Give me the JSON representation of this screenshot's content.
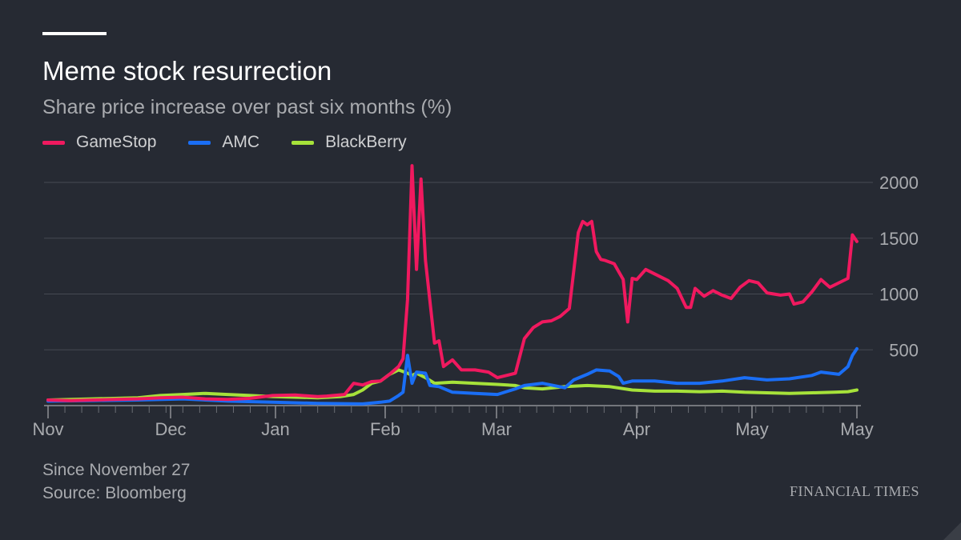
{
  "header": {
    "title": "Meme stock resurrection",
    "subtitle": "Share price increase over past six months (%)"
  },
  "legend": [
    {
      "label": "GameStop",
      "color": "#f0195f"
    },
    {
      "label": "AMC",
      "color": "#1a6ef5"
    },
    {
      "label": "BlackBerry",
      "color": "#a6e23a"
    }
  ],
  "footer": {
    "note": "Since November 27",
    "source": "Source: Bloomberg",
    "brand": "FINANCIAL TIMES"
  },
  "chart_data": {
    "type": "line",
    "title": "Meme stock resurrection",
    "subtitle": "Share price increase over past six months (%)",
    "ylim": [
      0,
      2000
    ],
    "yticks": [
      500,
      1000,
      1500,
      2000
    ],
    "xlim": [
      0,
      180
    ],
    "xticks": [
      {
        "x": 0,
        "label": "Nov"
      },
      {
        "x": 30,
        "label": "Dec"
      },
      {
        "x": 61,
        "label": "Jan"
      },
      {
        "x": 92,
        "label": "Feb"
      },
      {
        "x": 120,
        "label": "Mar"
      },
      {
        "x": 151,
        "label": "Apr"
      },
      {
        "x": 181,
        "label": "May"
      },
      {
        "x": 212,
        "label": "May"
      }
    ],
    "x_tick_labels_shown": [
      "Nov",
      "Dec",
      "Jan",
      "Feb",
      "Mar",
      "Apr",
      "May",
      "May"
    ],
    "grid": true,
    "legend_position": "top-left",
    "series": [
      {
        "name": "GameStop",
        "color": "#f0195f",
        "points": [
          [
            0,
            50
          ],
          [
            5,
            45
          ],
          [
            10,
            50
          ],
          [
            15,
            55
          ],
          [
            20,
            60
          ],
          [
            25,
            70
          ],
          [
            30,
            75
          ],
          [
            35,
            60
          ],
          [
            40,
            55
          ],
          [
            45,
            65
          ],
          [
            50,
            90
          ],
          [
            55,
            95
          ],
          [
            60,
            80
          ],
          [
            62,
            85
          ],
          [
            66,
            100
          ],
          [
            68,
            200
          ],
          [
            70,
            185
          ],
          [
            72,
            215
          ],
          [
            74,
            220
          ],
          [
            76,
            280
          ],
          [
            78,
            350
          ],
          [
            79,
            420
          ],
          [
            80,
            950
          ],
          [
            81,
            2150
          ],
          [
            82,
            1220
          ],
          [
            83,
            2030
          ],
          [
            84,
            1300
          ],
          [
            86,
            560
          ],
          [
            87,
            580
          ],
          [
            88,
            350
          ],
          [
            90,
            410
          ],
          [
            92,
            320
          ],
          [
            95,
            320
          ],
          [
            98,
            300
          ],
          [
            100,
            250
          ],
          [
            104,
            290
          ],
          [
            106,
            600
          ],
          [
            108,
            700
          ],
          [
            110,
            750
          ],
          [
            112,
            760
          ],
          [
            114,
            800
          ],
          [
            116,
            870
          ],
          [
            118,
            1550
          ],
          [
            119,
            1650
          ],
          [
            120,
            1620
          ],
          [
            121,
            1650
          ],
          [
            122,
            1380
          ],
          [
            123,
            1310
          ],
          [
            124,
            1300
          ],
          [
            126,
            1270
          ],
          [
            127,
            1200
          ],
          [
            128,
            1130
          ],
          [
            129,
            750
          ],
          [
            130,
            1140
          ],
          [
            131,
            1130
          ],
          [
            133,
            1220
          ],
          [
            135,
            1180
          ],
          [
            138,
            1120
          ],
          [
            140,
            1050
          ],
          [
            142,
            880
          ],
          [
            143,
            880
          ],
          [
            144,
            1050
          ],
          [
            146,
            980
          ],
          [
            148,
            1030
          ],
          [
            150,
            990
          ],
          [
            152,
            960
          ],
          [
            154,
            1060
          ],
          [
            156,
            1120
          ],
          [
            158,
            1100
          ],
          [
            160,
            1010
          ],
          [
            163,
            990
          ],
          [
            165,
            1000
          ],
          [
            166,
            910
          ],
          [
            168,
            930
          ],
          [
            170,
            1020
          ],
          [
            172,
            1130
          ],
          [
            174,
            1060
          ],
          [
            176,
            1100
          ],
          [
            178,
            1140
          ],
          [
            179,
            1530
          ],
          [
            180,
            1470
          ]
        ]
      },
      {
        "name": "AMC",
        "color": "#1a6ef5",
        "points": [
          [
            0,
            40
          ],
          [
            10,
            45
          ],
          [
            20,
            50
          ],
          [
            30,
            60
          ],
          [
            40,
            40
          ],
          [
            50,
            30
          ],
          [
            60,
            20
          ],
          [
            70,
            15
          ],
          [
            74,
            30
          ],
          [
            76,
            40
          ],
          [
            78,
            90
          ],
          [
            79,
            120
          ],
          [
            80,
            450
          ],
          [
            81,
            200
          ],
          [
            82,
            300
          ],
          [
            84,
            290
          ],
          [
            85,
            180
          ],
          [
            87,
            170
          ],
          [
            90,
            120
          ],
          [
            95,
            110
          ],
          [
            100,
            100
          ],
          [
            104,
            150
          ],
          [
            106,
            180
          ],
          [
            110,
            200
          ],
          [
            115,
            160
          ],
          [
            117,
            230
          ],
          [
            120,
            280
          ],
          [
            122,
            320
          ],
          [
            125,
            310
          ],
          [
            127,
            260
          ],
          [
            128,
            200
          ],
          [
            130,
            220
          ],
          [
            135,
            220
          ],
          [
            140,
            200
          ],
          [
            145,
            200
          ],
          [
            150,
            220
          ],
          [
            155,
            250
          ],
          [
            160,
            230
          ],
          [
            165,
            240
          ],
          [
            170,
            270
          ],
          [
            172,
            300
          ],
          [
            174,
            290
          ],
          [
            176,
            280
          ],
          [
            178,
            350
          ],
          [
            179,
            450
          ],
          [
            180,
            510
          ]
        ]
      },
      {
        "name": "BlackBerry",
        "color": "#a6e23a",
        "points": [
          [
            0,
            50
          ],
          [
            10,
            60
          ],
          [
            20,
            70
          ],
          [
            25,
            90
          ],
          [
            30,
            100
          ],
          [
            35,
            110
          ],
          [
            40,
            100
          ],
          [
            45,
            90
          ],
          [
            50,
            80
          ],
          [
            60,
            70
          ],
          [
            65,
            80
          ],
          [
            68,
            100
          ],
          [
            70,
            140
          ],
          [
            72,
            200
          ],
          [
            74,
            220
          ],
          [
            76,
            280
          ],
          [
            78,
            320
          ],
          [
            80,
            290
          ],
          [
            81,
            270
          ],
          [
            82,
            290
          ],
          [
            84,
            250
          ],
          [
            86,
            200
          ],
          [
            90,
            210
          ],
          [
            95,
            200
          ],
          [
            100,
            190
          ],
          [
            104,
            180
          ],
          [
            106,
            160
          ],
          [
            110,
            150
          ],
          [
            115,
            170
          ],
          [
            120,
            180
          ],
          [
            125,
            170
          ],
          [
            130,
            140
          ],
          [
            135,
            130
          ],
          [
            140,
            130
          ],
          [
            145,
            125
          ],
          [
            150,
            130
          ],
          [
            155,
            120
          ],
          [
            160,
            115
          ],
          [
            165,
            110
          ],
          [
            170,
            115
          ],
          [
            175,
            120
          ],
          [
            178,
            125
          ],
          [
            180,
            140
          ]
        ]
      }
    ]
  }
}
